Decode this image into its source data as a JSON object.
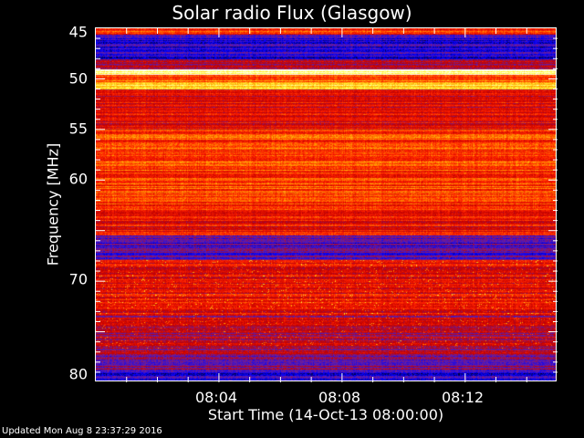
{
  "chart_data": {
    "type": "heatmap",
    "title": "Solar radio Flux (Glasgow)",
    "xlabel": "Start Time (14-Oct-13 08:00:00)",
    "ylabel": "Frequency [MHz]",
    "xlim": [
      "08:00",
      "08:15"
    ],
    "ylim": [
      45,
      80
    ],
    "y_inverted": true,
    "xticks": [
      "08:04",
      "08:08",
      "08:12"
    ],
    "yticks": [
      45,
      50,
      55,
      60,
      70,
      80
    ],
    "colormap": [
      "#000000",
      "#0000ff",
      "#6a1fa0",
      "#c00000",
      "#ff2000",
      "#ff9a00",
      "#ffff40",
      "#ffffff"
    ],
    "bands": [
      {
        "from": 45,
        "to": 45.6,
        "intensity": 0.55
      },
      {
        "from": 45.6,
        "to": 48.0,
        "intensity": 0.18
      },
      {
        "from": 48.0,
        "to": 49.0,
        "intensity": 0.38
      },
      {
        "from": 49.0,
        "to": 49.6,
        "intensity": 0.95
      },
      {
        "from": 49.6,
        "to": 50.3,
        "intensity": 0.62
      },
      {
        "from": 50.3,
        "to": 51.0,
        "intensity": 0.85
      },
      {
        "from": 51.0,
        "to": 55.0,
        "intensity": 0.48
      },
      {
        "from": 55.0,
        "to": 63.0,
        "intensity": 0.6
      },
      {
        "from": 63.0,
        "to": 65.5,
        "intensity": 0.5
      },
      {
        "from": 65.5,
        "to": 68.0,
        "intensity": 0.25
      },
      {
        "from": 68.0,
        "to": 73.5,
        "intensity": 0.5
      },
      {
        "from": 73.5,
        "to": 77.5,
        "intensity": 0.4
      },
      {
        "from": 77.5,
        "to": 79.0,
        "intensity": 0.33
      },
      {
        "from": 79.0,
        "to": 80.0,
        "intensity": 0.2
      }
    ]
  },
  "footer": {
    "updated": "Updated Mon Aug  8 23:37:29 2016"
  }
}
